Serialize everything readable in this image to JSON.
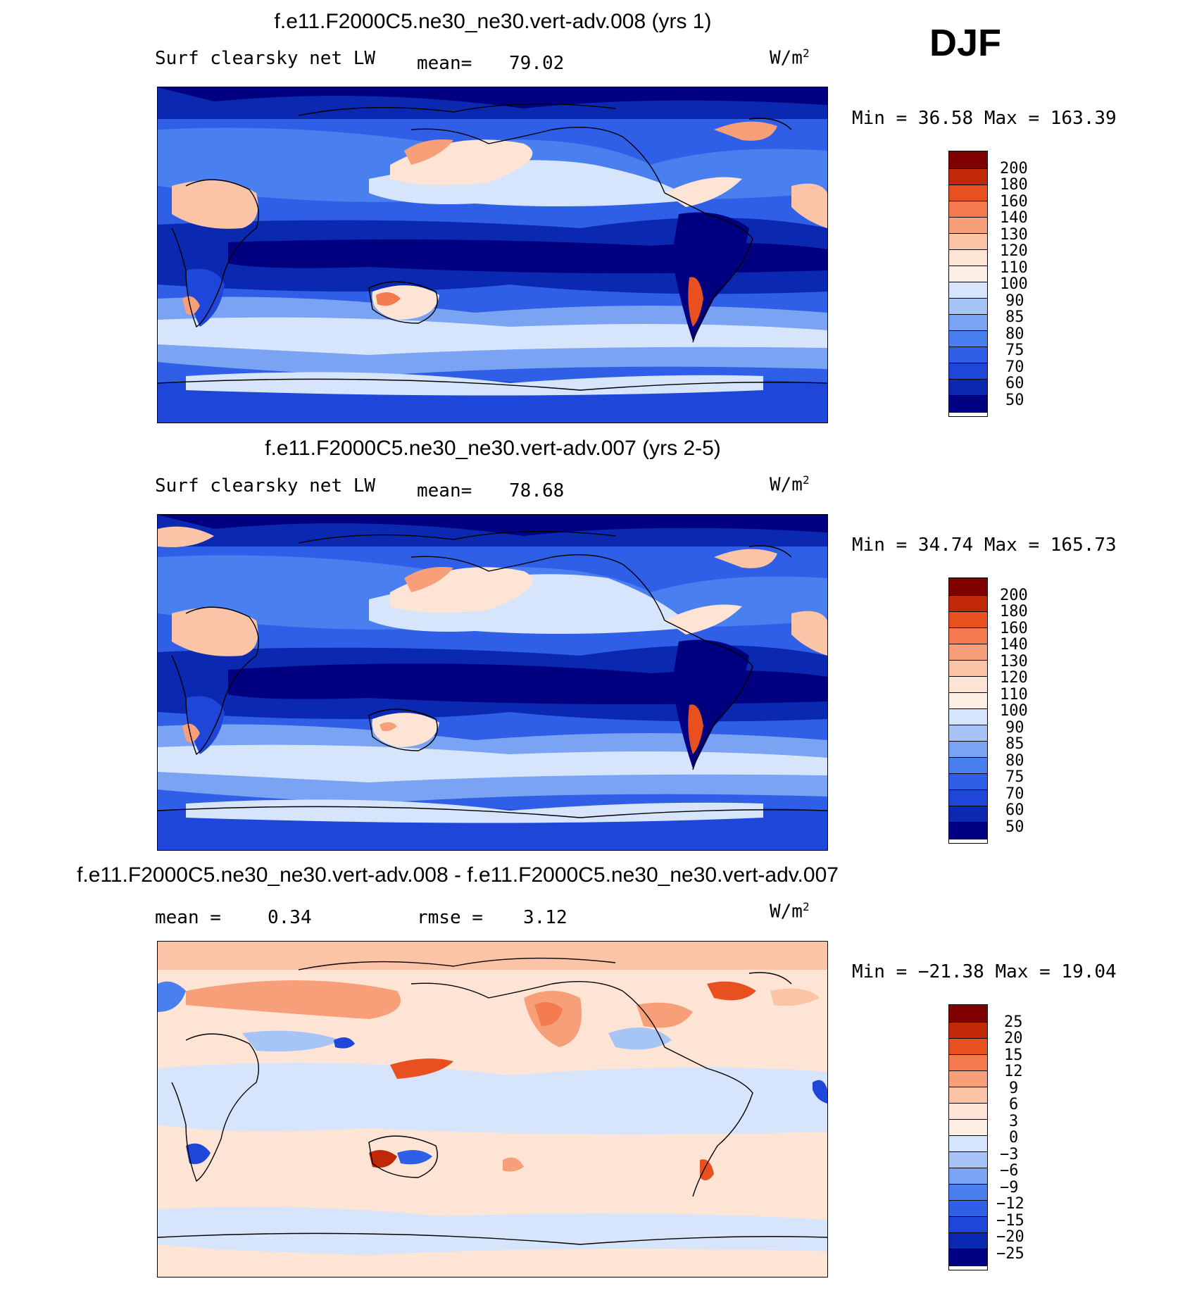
{
  "season": "DJF",
  "panels": [
    {
      "title": "f.e11.F2000C5.ne30_ne30.vert-adv.008 (yrs 1)",
      "variable": "Surf clearsky net LW",
      "stat_label": "mean=",
      "stat_value": "79.02",
      "units": "W/m",
      "units_sup": "2",
      "minmax": "Min =   36.58 Max = 163.39",
      "levels": [
        "200",
        "180",
        "160",
        "140",
        "130",
        "120",
        "110",
        "100",
        "90",
        "85",
        "80",
        "75",
        "70",
        "60",
        "50"
      ]
    },
    {
      "title": "f.e11.F2000C5.ne30_ne30.vert-adv.007 (yrs 2-5)",
      "variable": "Surf clearsky net LW",
      "stat_label": "mean=",
      "stat_value": "78.68",
      "units": "W/m",
      "units_sup": "2",
      "minmax": "Min =   34.74 Max = 165.73",
      "levels": [
        "200",
        "180",
        "160",
        "140",
        "130",
        "120",
        "110",
        "100",
        "90",
        "85",
        "80",
        "75",
        "70",
        "60",
        "50"
      ]
    },
    {
      "title": "f.e11.F2000C5.ne30_ne30.vert-adv.008 - f.e11.F2000C5.ne30_ne30.vert-adv.007",
      "stat_label": "mean =",
      "stat_value": "0.34",
      "stat2_label": "rmse =",
      "stat2_value": "3.12",
      "units": "W/m",
      "units_sup": "2",
      "minmax": "Min = −21.38 Max =  19.04",
      "levels": [
        "25",
        "20",
        "15",
        "12",
        "9",
        "6",
        "3",
        "0",
        "−3",
        "−6",
        "−9",
        "−12",
        "−15",
        "−20",
        "−25"
      ]
    }
  ],
  "colors": {
    "abs_scale": [
      "#f7f7f7",
      "#000080",
      "#0a28b0",
      "#1e46d8",
      "#2f5fe6",
      "#4a7ff0",
      "#7aa3f3",
      "#a7c4f7",
      "#d6e5fb",
      "#fde4d4",
      "#fbc4a6",
      "#f79f78",
      "#f47a50",
      "#e85020",
      "#c02808",
      "#800000"
    ],
    "diff_scale": [
      "#000080",
      "#0a28b0",
      "#1e46d8",
      "#2f5fe6",
      "#4a7ff0",
      "#7aa3f3",
      "#a7c4f7",
      "#d6e5fb",
      "#fde4d4",
      "#fbc4a6",
      "#f79f78",
      "#f47a50",
      "#e85020",
      "#c02808",
      "#800000",
      "#800000"
    ]
  }
}
